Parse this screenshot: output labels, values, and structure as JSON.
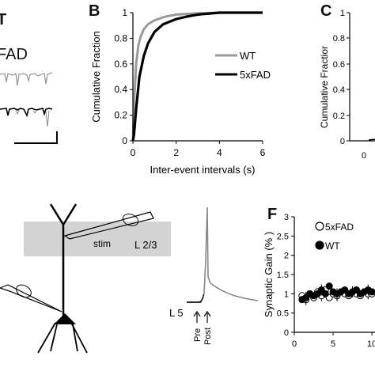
{
  "panels": {
    "top_left": {
      "letter": "T",
      "label": "FAD"
    },
    "b": {
      "letter": "B"
    },
    "c": {
      "letter": "C",
      "ylabel": "Cumulative Fractior",
      "yticks": [
        "1",
        "0.8",
        "0.6",
        "0.4",
        "0.2",
        "0"
      ],
      "xtick_first": "0"
    },
    "e": {
      "layer_23": "L 2/3",
      "layer_5": "L 5",
      "stim": "stim",
      "pre": "Pre",
      "post": "Post"
    },
    "f": {
      "letter": "F"
    }
  },
  "chart_data": [
    {
      "panel": "B",
      "type": "line",
      "xlabel": "Inter-event intervals (s)",
      "ylabel": "Cumulative Fraction",
      "xlim": [
        0,
        6
      ],
      "ylim": [
        0,
        1
      ],
      "xticks": [
        "0",
        "2",
        "4",
        "6"
      ],
      "yticks": [
        "0",
        "0.2",
        "0.4",
        "0.6",
        "0.8",
        "1"
      ],
      "legend_position": "right-middle",
      "series": [
        {
          "name": "WT",
          "color": "#9a9a9a",
          "x": [
            0.05,
            0.15,
            0.25,
            0.35,
            0.5,
            0.7,
            1.0,
            1.5,
            2.0,
            3.0,
            4.0,
            6.0
          ],
          "y": [
            0.3,
            0.6,
            0.74,
            0.81,
            0.87,
            0.91,
            0.94,
            0.97,
            0.985,
            0.995,
            1.0,
            1.0
          ]
        },
        {
          "name": "5xFAD",
          "color": "#000000",
          "x": [
            0.05,
            0.15,
            0.3,
            0.5,
            0.7,
            1.0,
            1.4,
            2.0,
            2.5,
            3.0,
            4.0,
            6.0
          ],
          "y": [
            0.05,
            0.25,
            0.5,
            0.66,
            0.76,
            0.85,
            0.91,
            0.95,
            0.97,
            0.985,
            1.0,
            1.0
          ]
        }
      ]
    },
    {
      "panel": "F",
      "type": "scatter",
      "ylabel": "Synaptic Gain (% )",
      "xlim": [
        0,
        11
      ],
      "ylim": [
        0,
        3
      ],
      "xticks": [
        "0",
        "5",
        "10"
      ],
      "yticks": [
        "0",
        "0.5",
        "1",
        "1.5",
        "2",
        "2.5",
        "3"
      ],
      "legend_position": "top",
      "series": [
        {
          "name": "5xFAD",
          "marker": "open",
          "x": [
            1,
            1.5,
            2,
            2.5,
            3,
            3.5,
            4,
            4.5,
            5,
            5.5,
            6,
            6.5,
            7,
            7.5,
            8,
            8.5,
            9,
            9.5,
            10
          ],
          "y": [
            0.95,
            0.85,
            1.0,
            0.9,
            1.05,
            0.95,
            1.1,
            0.9,
            1.0,
            0.95,
            1.05,
            1.0,
            0.95,
            1.05,
            1.0,
            0.95,
            1.05,
            1.0,
            1.0
          ]
        },
        {
          "name": "WT",
          "marker": "filled",
          "x": [
            1,
            1.5,
            2,
            2.5,
            3,
            3.5,
            4,
            4.5,
            5,
            5.5,
            6,
            6.5,
            7,
            7.5,
            8,
            8.5,
            9,
            9.5,
            10
          ],
          "y": [
            0.85,
            0.9,
            1.0,
            0.95,
            1.0,
            1.1,
            1.0,
            1.2,
            1.05,
            1.0,
            1.05,
            1.1,
            1.0,
            1.05,
            1.1,
            1.0,
            1.05,
            1.1,
            1.05
          ]
        }
      ]
    }
  ]
}
